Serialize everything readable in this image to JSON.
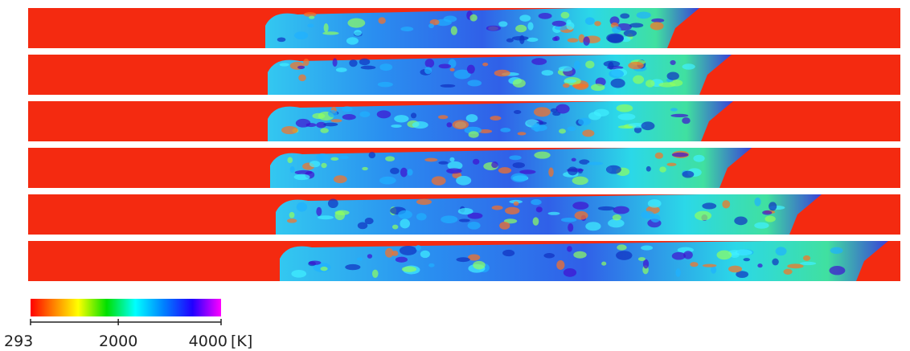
{
  "colorbar": {
    "ticks": [
      293,
      2000,
      4000
    ],
    "unit": "[K]"
  }
}
